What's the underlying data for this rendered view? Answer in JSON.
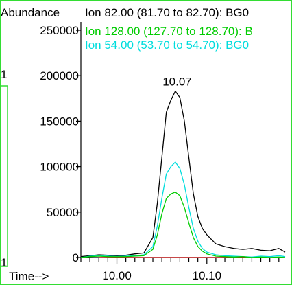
{
  "window_left_fragments": [
    "1",
    "1"
  ],
  "chart_data": {
    "type": "line",
    "ylabel": "Abundance",
    "xlabel": "Time-->",
    "ylim": [
      0,
      250000
    ],
    "xlim": [
      9.96,
      10.187
    ],
    "y_ticks": [
      0,
      50000,
      100000,
      150000,
      200000,
      250000
    ],
    "y_tick_labels": [
      "0",
      "50000",
      "100000",
      "150000",
      "200000",
      "250000"
    ],
    "x_ticks_labeled": [
      10.0,
      10.1
    ],
    "x_tick_labels": [
      "10.00",
      "10.10"
    ],
    "x_minor_step": 0.01,
    "peak_annotation": {
      "text": "10.07",
      "x": 10.067,
      "y": 183000
    },
    "baseline": {
      "color": "#cc0000",
      "y": 0,
      "x": [
        9.98,
        10.187
      ]
    },
    "colors": {
      "frame": "#33dd33",
      "text": "#000000"
    },
    "series": [
      {
        "name": "Ion  82.00 (81.70 to 82.70): BG0",
        "color": "#000000",
        "x": [
          9.96,
          9.97,
          9.98,
          9.99,
          10.0,
          10.01,
          10.02,
          10.03,
          10.04,
          10.045,
          10.05,
          10.055,
          10.06,
          10.065,
          10.07,
          10.075,
          10.08,
          10.085,
          10.09,
          10.095,
          10.1,
          10.11,
          10.12,
          10.13,
          10.14,
          10.15,
          10.16,
          10.17,
          10.18,
          10.187
        ],
        "y": [
          1000,
          2000,
          3000,
          2500,
          2000,
          2500,
          4000,
          5000,
          22000,
          60000,
          110000,
          160000,
          173000,
          183000,
          176000,
          150000,
          110000,
          70000,
          45000,
          32000,
          25000,
          15000,
          12000,
          10000,
          9000,
          10000,
          8000,
          7500,
          10000,
          6000
        ]
      },
      {
        "name": "Ion 128.00 (127.70 to 128.70): B",
        "color": "#00cc00",
        "x": [
          9.96,
          9.97,
          9.98,
          9.99,
          10.0,
          10.01,
          10.02,
          10.03,
          10.04,
          10.045,
          10.05,
          10.055,
          10.06,
          10.065,
          10.07,
          10.075,
          10.08,
          10.085,
          10.09,
          10.095,
          10.1,
          10.11,
          10.12,
          10.13,
          10.14,
          10.15,
          10.16,
          10.17,
          10.18,
          10.187
        ],
        "y": [
          0,
          1000,
          1500,
          1000,
          800,
          1000,
          1500,
          2000,
          9000,
          25000,
          48000,
          65000,
          70000,
          72000,
          68000,
          55000,
          38000,
          22000,
          12000,
          7000,
          4000,
          1500,
          1000,
          500,
          1000,
          0,
          500,
          0,
          500,
          0
        ]
      },
      {
        "name": "Ion  54.00 (53.70 to 54.70): BG0",
        "color": "#00dddd",
        "x": [
          9.96,
          9.97,
          9.98,
          9.99,
          10.0,
          10.01,
          10.02,
          10.03,
          10.04,
          10.045,
          10.05,
          10.055,
          10.06,
          10.065,
          10.07,
          10.075,
          10.08,
          10.085,
          10.09,
          10.095,
          10.1,
          10.11,
          10.12,
          10.13,
          10.14,
          10.15,
          10.16,
          10.17,
          10.18,
          10.187
        ],
        "y": [
          0,
          1500,
          2000,
          1500,
          1200,
          1500,
          2000,
          3000,
          12000,
          35000,
          65000,
          92000,
          100000,
          105000,
          98000,
          80000,
          55000,
          32000,
          18000,
          10000,
          6000,
          3000,
          2000,
          1500,
          1000,
          500,
          1500,
          1000,
          2000,
          1000
        ]
      }
    ]
  }
}
